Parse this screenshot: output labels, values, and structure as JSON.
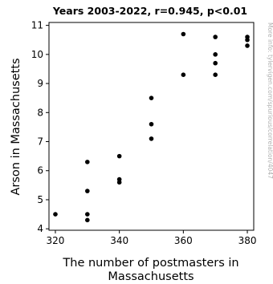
{
  "chart_data": {
    "type": "scatter",
    "title": "Years 2003-2022, r=0.945, p<0.01",
    "xlabel_lines": [
      "The number of postmasters in",
      "Massachusetts"
    ],
    "ylabel": "Arson in Massachusetts",
    "xlim": [
      318,
      382
    ],
    "ylim": [
      3.95,
      11.1
    ],
    "xticks": [
      320,
      340,
      360,
      380
    ],
    "yticks": [
      4,
      5,
      6,
      7,
      8,
      9,
      10,
      11
    ],
    "grid": false,
    "legend": "none",
    "point_color": "#000000",
    "watermark": "More info: tylervigen.com/spurious/correlation/4047",
    "points": [
      {
        "x": 320,
        "y": 4.5
      },
      {
        "x": 330,
        "y": 4.3
      },
      {
        "x": 330,
        "y": 4.5
      },
      {
        "x": 330,
        "y": 5.3
      },
      {
        "x": 330,
        "y": 6.3
      },
      {
        "x": 340,
        "y": 5.6
      },
      {
        "x": 340,
        "y": 5.7
      },
      {
        "x": 340,
        "y": 6.5
      },
      {
        "x": 350,
        "y": 7.1
      },
      {
        "x": 350,
        "y": 7.6
      },
      {
        "x": 350,
        "y": 8.5
      },
      {
        "x": 360,
        "y": 9.3
      },
      {
        "x": 360,
        "y": 10.7
      },
      {
        "x": 370,
        "y": 9.3
      },
      {
        "x": 370,
        "y": 9.7
      },
      {
        "x": 370,
        "y": 10.0
      },
      {
        "x": 370,
        "y": 10.6
      },
      {
        "x": 380,
        "y": 10.3
      },
      {
        "x": 380,
        "y": 10.5
      },
      {
        "x": 380,
        "y": 10.6
      }
    ]
  }
}
